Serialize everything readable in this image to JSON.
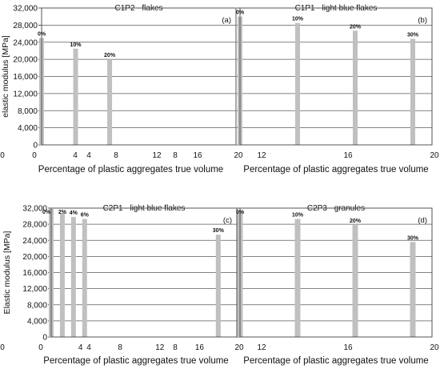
{
  "chart_data": [
    {
      "type": "bar",
      "title": "C1P2 -  flakes",
      "panel_label": "(a)",
      "xlabel": "Percentage  of plastic aggregates  true volume",
      "ylabel": "elastic modulus [MPa]",
      "xlim": [
        0,
        20
      ],
      "x_ticks": [
        "0",
        "4",
        "8",
        "12",
        "16",
        "20"
      ],
      "ylim": [
        0,
        32000
      ],
      "y_ticks": [
        "0",
        "4,000",
        "8,000",
        "12,000",
        "16,000",
        "20,000",
        "24,000",
        "28,000",
        "32,000"
      ],
      "x": [
        0,
        3.5,
        7
      ],
      "values": [
        25000,
        22500,
        20000
      ],
      "data_labels": [
        "0%",
        "10%",
        "20%"
      ],
      "bar_color": "#c0c0c0",
      "grid": "horizontal"
    },
    {
      "type": "bar",
      "title": "C1P1 -  light blue flakes",
      "panel_label": "(b)",
      "xlabel": "Percentage  of plastic aggregates true volume",
      "ylabel": "",
      "xlim": [
        0,
        20
      ],
      "x_ticks": [
        "0",
        "4",
        "8",
        "12",
        "16",
        "20"
      ],
      "ylim": [
        0,
        32000
      ],
      "y_ticks": [],
      "x": [
        0,
        6,
        12,
        18
      ],
      "values": [
        30000,
        28500,
        26700,
        24800
      ],
      "data_labels": [
        "0%",
        "10%",
        "20%",
        "30%"
      ],
      "bar_color": "#c0c0c0",
      "grid": "horizontal"
    },
    {
      "type": "bar",
      "title": "C2P1 -  light blue flakes",
      "panel_label": "(c)",
      "xlabel": "Percentage  of plastic aggregates true volume",
      "ylabel": "Elastic modulus [MPa]",
      "xlim": [
        0,
        20
      ],
      "x_ticks": [
        "0",
        "4",
        "8",
        "12",
        "16",
        "20"
      ],
      "ylim": [
        0,
        32000
      ],
      "y_ticks": [
        "0",
        "4,000",
        "8,000",
        "12,000",
        "16,000",
        "20,000",
        "24,000",
        "28,000",
        "32,000"
      ],
      "x": [
        0,
        1.2,
        2.4,
        3.6,
        18
      ],
      "values": [
        31800,
        30800,
        29800,
        29300,
        25400
      ],
      "data_labels": [
        "0%",
        "2%",
        "4%",
        "6%",
        "30%"
      ],
      "bar_color": "#c0c0c0",
      "grid": "horizontal"
    },
    {
      "type": "bar",
      "title": "C2P3 -  granules",
      "panel_label": "(d)",
      "xlabel": "Percentage  of plastic aggregates true volume",
      "ylabel": "",
      "xlim": [
        0,
        20
      ],
      "x_ticks": [
        "0",
        "4",
        "8",
        "12",
        "16",
        "20"
      ],
      "ylim": [
        0,
        32000
      ],
      "y_ticks": [],
      "x": [
        0,
        6,
        12,
        18
      ],
      "values": [
        31200,
        29300,
        27800,
        23600
      ],
      "data_labels": [
        "0%",
        "10%",
        "20%",
        "30%"
      ],
      "bar_color": "#c0c0c0",
      "grid": "horizontal"
    }
  ]
}
